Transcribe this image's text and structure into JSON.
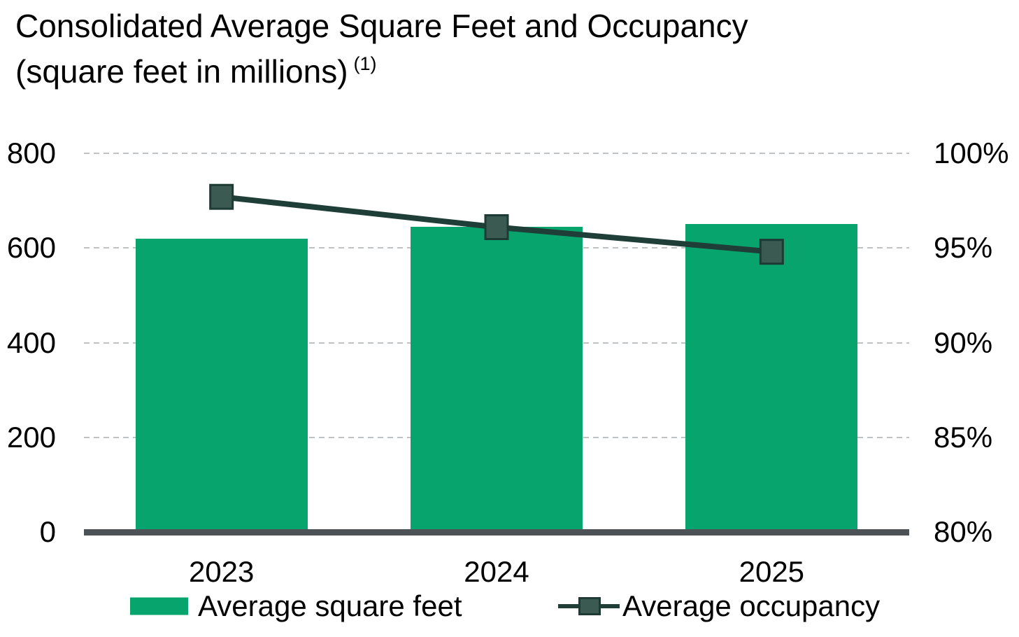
{
  "title": {
    "line1": "Consolidated Average Square Feet and Occupancy",
    "line2": "(square feet in millions)",
    "footnote": "(1)"
  },
  "chart_data": {
    "type": "bar+line",
    "categories": [
      "2023",
      "2024",
      "2025"
    ],
    "series": [
      {
        "name": "Average square feet",
        "type": "bar",
        "axis": "left",
        "values": [
          620,
          645,
          650
        ]
      },
      {
        "name": "Average occupancy",
        "type": "line",
        "axis": "right",
        "values": [
          97.7,
          96.1,
          94.8
        ],
        "marker": "square"
      }
    ],
    "left_axis": {
      "min": 0,
      "max": 800,
      "ticks": [
        "800",
        "600",
        "400",
        "200",
        "0"
      ]
    },
    "right_axis": {
      "min": 80,
      "max": 100,
      "ticks": [
        "100%",
        "95%",
        "90%",
        "85%",
        "80%"
      ]
    },
    "grid": "horizontal dashed",
    "legend_position": "bottom"
  },
  "style": {
    "bar_color": "#08a46e",
    "line_color": "#1f3e37",
    "marker_fill": "#3b5a52",
    "marker_border": "#1d3a34",
    "axis_color": "#4d5257",
    "gridline_color": "#bfc2c4",
    "text_color": "#000000"
  }
}
